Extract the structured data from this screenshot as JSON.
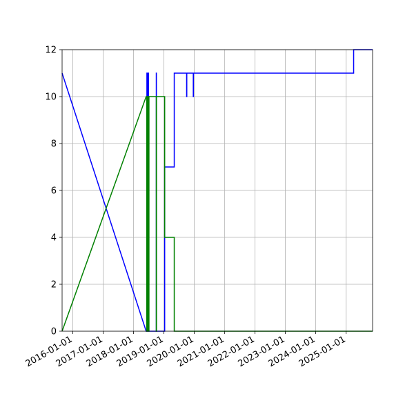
{
  "chart_data": {
    "type": "line",
    "title": "",
    "xlabel": "",
    "ylabel": "",
    "xlim": [
      "2015-08-25",
      "2025-11-15"
    ],
    "ylim": [
      0,
      12
    ],
    "grid": true,
    "x_tick_labels": [
      "2016-01-01",
      "2017-01-01",
      "2018-01-01",
      "2019-01-01",
      "2020-01-01",
      "2021-01-01",
      "2022-01-01",
      "2023-01-01",
      "2024-01-01",
      "2025-01-01"
    ],
    "y_tick_labels": [
      "0",
      "2",
      "4",
      "6",
      "8",
      "10",
      "12"
    ],
    "series": [
      {
        "color": "#0000ff",
        "points": [
          [
            "2015-08-25",
            11
          ],
          [
            "2018-06-01",
            0
          ],
          [
            "2018-06-10",
            0
          ],
          [
            "2018-06-10",
            11
          ],
          [
            "2018-06-14",
            11
          ],
          [
            "2018-06-14",
            0
          ],
          [
            "2018-06-18",
            0
          ],
          [
            "2018-06-18",
            11
          ],
          [
            "2018-06-22",
            11
          ],
          [
            "2018-06-22",
            0
          ],
          [
            "2018-06-26",
            0
          ],
          [
            "2018-06-26",
            11
          ],
          [
            "2018-06-30",
            11
          ],
          [
            "2018-06-30",
            0
          ],
          [
            "2018-10-01",
            0
          ],
          [
            "2018-10-01",
            11
          ],
          [
            "2018-10-02",
            11
          ],
          [
            "2018-10-02",
            0
          ],
          [
            "2019-01-10",
            0
          ],
          [
            "2019-01-10",
            7
          ],
          [
            "2019-05-05",
            7
          ],
          [
            "2019-05-05",
            11
          ],
          [
            "2019-10-01",
            11
          ],
          [
            "2019-10-01",
            10
          ],
          [
            "2019-10-03",
            10
          ],
          [
            "2019-10-03",
            11
          ],
          [
            "2019-12-20",
            11
          ],
          [
            "2019-12-20",
            10
          ],
          [
            "2019-12-22",
            10
          ],
          [
            "2019-12-22",
            11
          ],
          [
            "2025-04-01",
            11
          ],
          [
            "2025-04-01",
            12
          ],
          [
            "2025-11-15",
            12
          ]
        ]
      },
      {
        "color": "#008000",
        "points": [
          [
            "2015-08-25",
            0
          ],
          [
            "2018-06-01",
            10
          ],
          [
            "2018-06-08",
            10
          ],
          [
            "2018-06-08",
            0
          ],
          [
            "2018-06-11",
            0
          ],
          [
            "2018-06-11",
            10
          ],
          [
            "2018-06-14",
            10
          ],
          [
            "2018-06-14",
            0
          ],
          [
            "2018-06-17",
            0
          ],
          [
            "2018-06-17",
            10
          ],
          [
            "2018-06-20",
            10
          ],
          [
            "2018-06-20",
            0
          ],
          [
            "2018-06-23",
            0
          ],
          [
            "2018-06-23",
            10
          ],
          [
            "2018-06-26",
            10
          ],
          [
            "2018-06-26",
            0
          ],
          [
            "2018-06-29",
            0
          ],
          [
            "2018-06-29",
            10
          ],
          [
            "2018-07-02",
            10
          ],
          [
            "2018-07-02",
            0
          ],
          [
            "2018-07-05",
            0
          ],
          [
            "2018-07-05",
            10
          ],
          [
            "2018-10-01",
            10
          ],
          [
            "2018-10-01",
            0
          ],
          [
            "2018-10-03",
            0
          ],
          [
            "2018-10-03",
            10
          ],
          [
            "2019-01-10",
            10
          ],
          [
            "2019-01-10",
            4
          ],
          [
            "2019-05-05",
            4
          ],
          [
            "2019-05-05",
            0
          ],
          [
            "2025-11-15",
            0
          ]
        ]
      }
    ]
  }
}
